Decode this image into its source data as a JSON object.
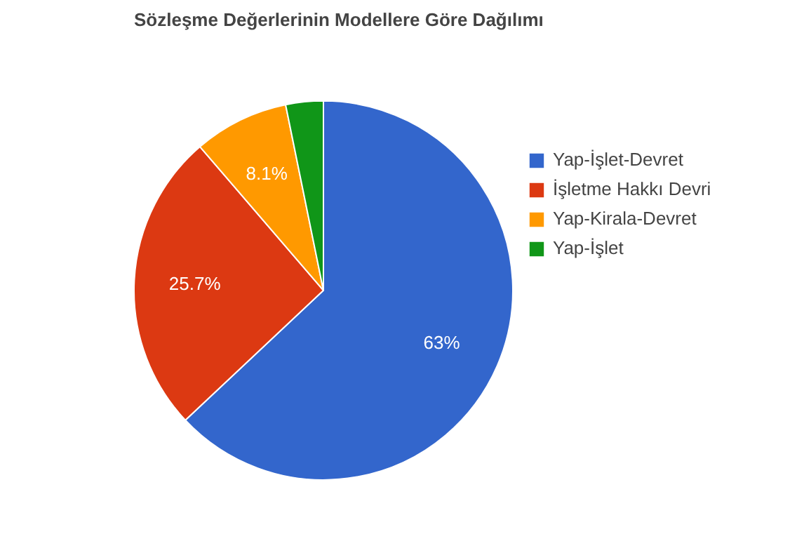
{
  "chart_data": {
    "type": "pie",
    "title": "Sözleşme Değerlerinin Modellere Göre Dağılımı",
    "categories": [
      "Yap-İşlet-Devret",
      "İşletme Hakkı Devri",
      "Yap-Kirala-Devret",
      "Yap-İşlet"
    ],
    "values": [
      63,
      25.7,
      8.1,
      3.2
    ],
    "value_labels": [
      "63%",
      "25.7%",
      "8.1%",
      null
    ],
    "colors": [
      "#3366cc",
      "#dc3912",
      "#ff9900",
      "#109618"
    ],
    "legend": "right"
  }
}
